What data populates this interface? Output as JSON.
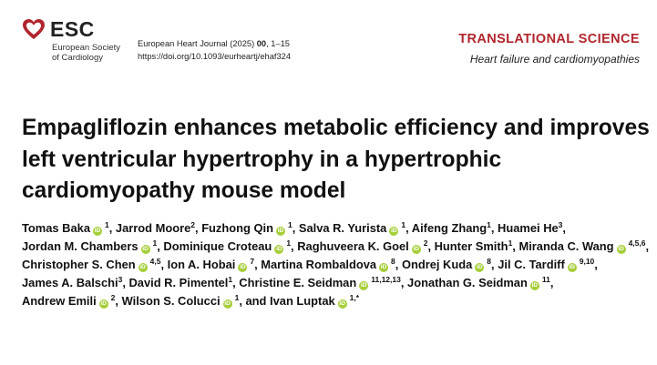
{
  "logo": {
    "abbr": "ESC",
    "name": "European Society of Cardiology"
  },
  "journal": {
    "name": "European Heart Journal (2025)",
    "volume": "00",
    "pages": ", 1–15",
    "doi": "https://doi.org/10.1093/eurheartj/ehaf324"
  },
  "section": {
    "type": "TRANSLATIONAL SCIENCE",
    "subtype": "Heart failure and cardiomyopathies"
  },
  "title": "Empagliflozin enhances metabolic efficiency and improves left ventricular hypertrophy in a hypertrophic cardiomyopathy mouse model",
  "orcid_glyph": "iD",
  "colors": {
    "brand_red": "#b0262d",
    "orcid_green": "#a6ce39"
  },
  "authors": [
    {
      "name": "Tomas Baka",
      "orcid": true,
      "aff": "1"
    },
    {
      "name": "Jarrod Moore",
      "orcid": false,
      "aff": "2"
    },
    {
      "name": "Fuzhong Qin",
      "orcid": true,
      "aff": "1"
    },
    {
      "name": "Salva R. Yurista",
      "orcid": true,
      "aff": "1"
    },
    {
      "name": "Aifeng Zhang",
      "orcid": false,
      "aff": "1"
    },
    {
      "name": "Huamei He",
      "orcid": false,
      "aff": "3"
    },
    {
      "name": "Jordan M. Chambers",
      "orcid": true,
      "aff": "1"
    },
    {
      "name": "Dominique Croteau",
      "orcid": true,
      "aff": "1"
    },
    {
      "name": "Raghuveera K. Goel",
      "orcid": true,
      "aff": "2"
    },
    {
      "name": "Hunter Smith",
      "orcid": false,
      "aff": "1"
    },
    {
      "name": "Miranda C. Wang",
      "orcid": true,
      "aff": "4,5,6"
    },
    {
      "name": "Christopher S. Chen",
      "orcid": true,
      "aff": "4,5"
    },
    {
      "name": "Ion A. Hobai",
      "orcid": true,
      "aff": "7"
    },
    {
      "name": "Martina Rombaldova",
      "orcid": true,
      "aff": "8"
    },
    {
      "name": "Ondrej Kuda",
      "orcid": true,
      "aff": "8"
    },
    {
      "name": "Jil C. Tardiff",
      "orcid": true,
      "aff": "9,10"
    },
    {
      "name": "James A. Balschi",
      "orcid": false,
      "aff": "3"
    },
    {
      "name": "David R. Pimentel",
      "orcid": false,
      "aff": "1"
    },
    {
      "name": "Christine E. Seidman",
      "orcid": true,
      "aff": "11,12,13"
    },
    {
      "name": "Jonathan G. Seidman",
      "orcid": true,
      "aff": "11"
    },
    {
      "name": "Andrew Emili",
      "orcid": true,
      "aff": "2"
    },
    {
      "name": "Wilson S. Colucci",
      "orcid": true,
      "aff": "1"
    },
    {
      "name": "Ivan Luptak",
      "orcid": true,
      "aff": "1,*"
    }
  ],
  "author_conjunction": "and"
}
